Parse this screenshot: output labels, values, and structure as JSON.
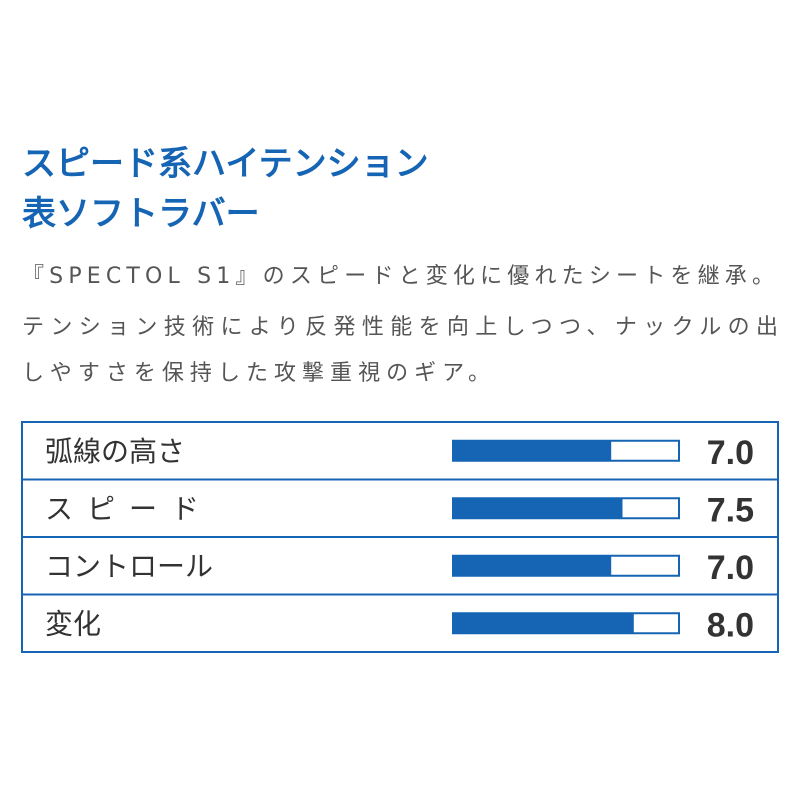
{
  "header": {
    "title": [
      "スピード系ハイテンション",
      "表ソフトラバー"
    ],
    "description": [
      "『SPECTOL S1』のスピードと変化に優れたシートを継承。",
      "テンション技術により反発性能を向上しつつ、ナックルの出",
      "しやすさを保持した攻撃重視のギア。"
    ]
  },
  "chart_data": {
    "type": "bar",
    "orientation": "horizontal",
    "categories": [
      "弧線の高さ",
      "スピード",
      "コントロール",
      "変化"
    ],
    "values": [
      7.0,
      7.5,
      7.0,
      8.0
    ],
    "value_labels": [
      "7.0",
      "7.5",
      "7.0",
      "8.0"
    ],
    "xlim": [
      0,
      10
    ],
    "color": "#1565b4"
  }
}
